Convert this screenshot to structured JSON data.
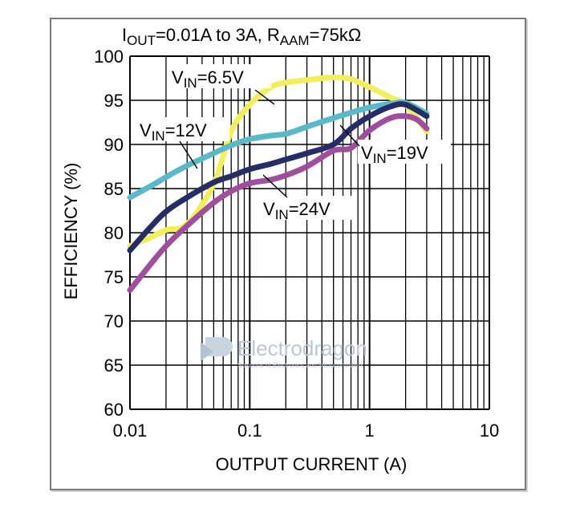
{
  "chart_data": {
    "type": "line",
    "title": {
      "i": "I",
      "i_sub": "OUT",
      "mid": "=0.01A to 3A, R",
      "r_sub": "AAM",
      "end": "=75kΩ"
    },
    "xlabel": "OUTPUT CURRENT (A)",
    "ylabel": "EFFICIENCY (%)",
    "x_scale": "log",
    "xlim": [
      0.01,
      10
    ],
    "ylim": [
      60,
      100
    ],
    "x_ticks": [
      "0.01",
      "0.1",
      "1",
      "10"
    ],
    "y_ticks": [
      "60",
      "65",
      "70",
      "75",
      "80",
      "85",
      "90",
      "95",
      "100"
    ],
    "grid": true,
    "series": [
      {
        "name": "VIN=6.5V",
        "label": {
          "v": "V",
          "sub": "IN",
          "rest": "=6.5V"
        },
        "color": "#f2ee5c",
        "x": [
          0.01,
          0.015,
          0.02,
          0.03,
          0.05,
          0.07,
          0.1,
          0.15,
          0.2,
          0.3,
          0.5,
          0.7,
          1,
          1.5,
          2,
          3
        ],
        "y": [
          78.5,
          79.5,
          80.3,
          81.0,
          85.5,
          91.5,
          94.5,
          96.5,
          97.0,
          97.3,
          97.6,
          97.4,
          96.5,
          95.3,
          94.5,
          91.5
        ]
      },
      {
        "name": "VIN=12V",
        "label": {
          "v": "V",
          "sub": "IN",
          "rest": "=12V"
        },
        "color": "#5ab9c9",
        "x": [
          0.01,
          0.015,
          0.02,
          0.03,
          0.05,
          0.07,
          0.1,
          0.15,
          0.2,
          0.3,
          0.5,
          0.7,
          1,
          1.5,
          2,
          3
        ],
        "y": [
          84.0,
          85.3,
          86.3,
          87.6,
          89.0,
          89.9,
          90.6,
          91.0,
          91.2,
          92.0,
          93.0,
          93.6,
          94.2,
          94.6,
          94.7,
          93.5
        ]
      },
      {
        "name": "VIN=19V",
        "label": {
          "v": "V",
          "sub": "IN",
          "rest": "=19V"
        },
        "color": "#262c66",
        "x": [
          0.01,
          0.015,
          0.02,
          0.03,
          0.05,
          0.07,
          0.1,
          0.15,
          0.2,
          0.3,
          0.5,
          0.7,
          1,
          1.5,
          2,
          3
        ],
        "y": [
          78.0,
          80.7,
          82.4,
          84.0,
          85.7,
          86.4,
          87.2,
          87.8,
          88.3,
          89.0,
          90.0,
          91.8,
          93.2,
          94.3,
          94.5,
          93.2
        ]
      },
      {
        "name": "VIN=24V",
        "label": {
          "v": "V",
          "sub": "IN",
          "rest": "=24V"
        },
        "color": "#a04d9e",
        "x": [
          0.01,
          0.015,
          0.02,
          0.03,
          0.05,
          0.07,
          0.1,
          0.15,
          0.2,
          0.3,
          0.5,
          0.7,
          1,
          1.5,
          2,
          2.5,
          3
        ],
        "y": [
          73.5,
          76.5,
          78.5,
          80.8,
          83.4,
          84.7,
          85.6,
          86.0,
          86.5,
          87.5,
          89.3,
          89.6,
          91.6,
          93.0,
          93.2,
          92.8,
          91.8
        ]
      }
    ]
  },
  "watermark": {
    "brand": "Electrodragon",
    "tagline": "Solutions of Electronics and Microcontrollers"
  }
}
